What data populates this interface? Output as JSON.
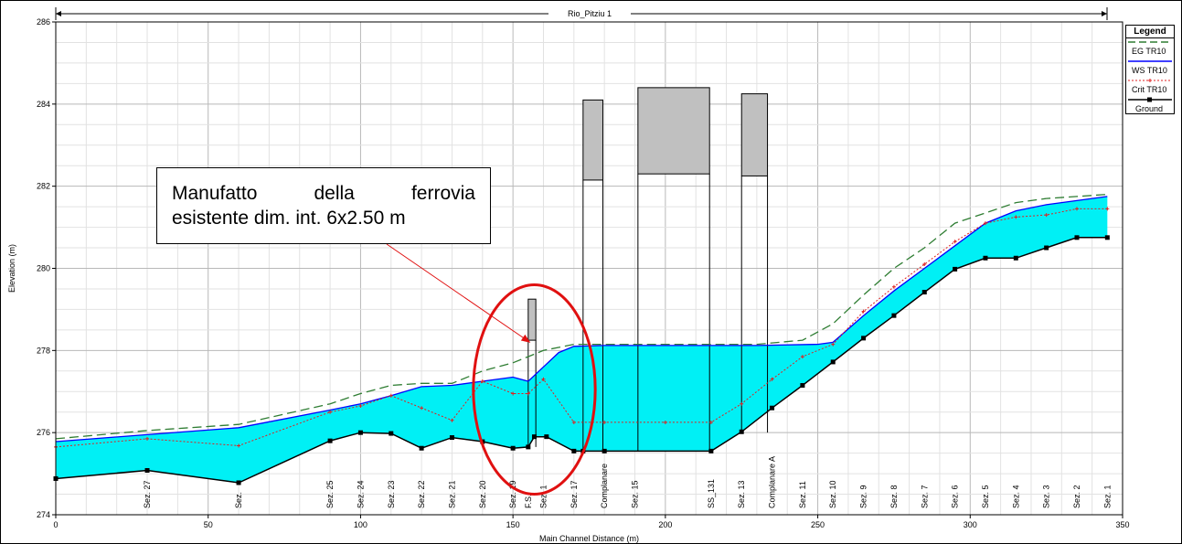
{
  "chart_data": {
    "type": "line",
    "title": "Rio_Pitziu 1",
    "xlabel": "Main Channel Distance (m)",
    "ylabel": "Elevation (m)",
    "xlim": [
      0,
      350
    ],
    "ylim": [
      274,
      286
    ],
    "x_ticks": [
      "0",
      "50",
      "100",
      "150",
      "200",
      "250",
      "300",
      "350"
    ],
    "y_ticks": [
      "274",
      "276",
      "278",
      "280",
      "282",
      "284",
      "286"
    ],
    "grid": true,
    "legend_position": "top-right",
    "legend_title": "Legend",
    "series": [
      {
        "name": "EG TR10",
        "color": "#2e7d32",
        "style": "long-dash",
        "points": [
          [
            0,
            275.85
          ],
          [
            30,
            276.05
          ],
          [
            60,
            276.2
          ],
          [
            90,
            276.7
          ],
          [
            100,
            276.95
          ],
          [
            110,
            277.15
          ],
          [
            120,
            277.2
          ],
          [
            130,
            277.2
          ],
          [
            140,
            277.5
          ],
          [
            150,
            277.7
          ],
          [
            155,
            277.85
          ],
          [
            160,
            278.0
          ],
          [
            170,
            278.15
          ],
          [
            180,
            278.15
          ],
          [
            200,
            278.15
          ],
          [
            230,
            278.15
          ],
          [
            245,
            278.25
          ],
          [
            255,
            278.65
          ],
          [
            265,
            279.35
          ],
          [
            275,
            280.0
          ],
          [
            285,
            280.5
          ],
          [
            295,
            281.1
          ],
          [
            305,
            281.35
          ],
          [
            315,
            281.6
          ],
          [
            325,
            281.7
          ],
          [
            335,
            281.75
          ],
          [
            345,
            281.8
          ]
        ]
      },
      {
        "name": "WS TR10",
        "color": "#0000ff",
        "style": "solid",
        "points": [
          [
            0,
            275.78
          ],
          [
            30,
            275.95
          ],
          [
            60,
            276.12
          ],
          [
            90,
            276.55
          ],
          [
            100,
            276.7
          ],
          [
            110,
            276.9
          ],
          [
            120,
            277.12
          ],
          [
            130,
            277.15
          ],
          [
            140,
            277.25
          ],
          [
            150,
            277.35
          ],
          [
            155,
            277.25
          ],
          [
            160,
            277.6
          ],
          [
            165,
            277.95
          ],
          [
            170,
            278.1
          ],
          [
            180,
            278.12
          ],
          [
            200,
            278.12
          ],
          [
            230,
            278.12
          ],
          [
            250,
            278.15
          ],
          [
            255,
            278.2
          ],
          [
            265,
            278.85
          ],
          [
            275,
            279.45
          ],
          [
            285,
            280.0
          ],
          [
            295,
            280.55
          ],
          [
            305,
            281.1
          ],
          [
            315,
            281.4
          ],
          [
            325,
            281.55
          ],
          [
            335,
            281.65
          ],
          [
            345,
            281.75
          ]
        ]
      },
      {
        "name": "Crit TR10",
        "color": "#e02020",
        "style": "dotted-marker",
        "points": [
          [
            0,
            275.65
          ],
          [
            30,
            275.85
          ],
          [
            60,
            275.68
          ],
          [
            90,
            276.5
          ],
          [
            100,
            276.65
          ],
          [
            110,
            276.9
          ],
          [
            120,
            276.6
          ],
          [
            130,
            276.3
          ],
          [
            140,
            277.25
          ],
          [
            150,
            276.95
          ],
          [
            155,
            276.95
          ],
          [
            160,
            277.3
          ],
          [
            170,
            276.25
          ],
          [
            180,
            276.25
          ],
          [
            200,
            276.25
          ],
          [
            215,
            276.25
          ],
          [
            225,
            276.7
          ],
          [
            235,
            277.3
          ],
          [
            245,
            277.85
          ],
          [
            255,
            278.15
          ],
          [
            265,
            278.95
          ],
          [
            275,
            279.55
          ],
          [
            285,
            280.1
          ],
          [
            295,
            280.65
          ],
          [
            305,
            281.1
          ],
          [
            315,
            281.25
          ],
          [
            325,
            281.3
          ],
          [
            335,
            281.45
          ],
          [
            345,
            281.45
          ]
        ]
      },
      {
        "name": "Ground",
        "color": "#000000",
        "style": "solid-marker",
        "points": [
          [
            0,
            274.88
          ],
          [
            30,
            275.08
          ],
          [
            60,
            274.78
          ],
          [
            90,
            275.8
          ],
          [
            100,
            276.0
          ],
          [
            110,
            275.98
          ],
          [
            120,
            275.62
          ],
          [
            130,
            275.88
          ],
          [
            140,
            275.78
          ],
          [
            150,
            275.62
          ],
          [
            155,
            275.65
          ],
          [
            157,
            275.9
          ],
          [
            161,
            275.9
          ],
          [
            170,
            275.55
          ],
          [
            173,
            275.55
          ],
          [
            180,
            275.55
          ],
          [
            215,
            275.55
          ],
          [
            225,
            276.02
          ],
          [
            235,
            276.6
          ],
          [
            245,
            277.15
          ],
          [
            255,
            277.72
          ],
          [
            265,
            278.3
          ],
          [
            275,
            278.85
          ],
          [
            285,
            279.42
          ],
          [
            295,
            279.98
          ],
          [
            305,
            280.25
          ],
          [
            315,
            280.25
          ],
          [
            325,
            280.5
          ],
          [
            335,
            280.75
          ],
          [
            345,
            280.75
          ]
        ]
      }
    ],
    "cyan_bottom": [
      [
        0,
        274.88
      ],
      [
        30,
        275.08
      ],
      [
        60,
        274.78
      ],
      [
        90,
        275.8
      ],
      [
        100,
        276.0
      ],
      [
        110,
        275.98
      ],
      [
        120,
        275.62
      ],
      [
        130,
        275.88
      ],
      [
        140,
        275.78
      ],
      [
        150,
        275.62
      ],
      [
        155,
        275.65
      ],
      [
        157,
        275.9
      ],
      [
        161,
        275.9
      ],
      [
        170,
        275.55
      ],
      [
        173,
        275.55
      ],
      [
        180,
        275.55
      ],
      [
        215,
        275.55
      ],
      [
        225,
        276.02
      ],
      [
        235,
        276.6
      ],
      [
        245,
        277.15
      ],
      [
        255,
        277.72
      ],
      [
        265,
        278.3
      ],
      [
        275,
        278.85
      ],
      [
        285,
        279.42
      ],
      [
        295,
        279.98
      ],
      [
        305,
        280.25
      ],
      [
        315,
        280.25
      ],
      [
        325,
        280.5
      ],
      [
        335,
        280.75
      ],
      [
        345,
        280.75
      ]
    ],
    "structures": [
      {
        "x0": 155,
        "x1": 157.5,
        "deck_bottom": 278.25,
        "deck_top": 279.25,
        "pier_bottom": 275.65
      },
      {
        "x0": 173,
        "x1": 179.5,
        "deck_bottom": 282.15,
        "deck_top": 284.1,
        "pier_bottom": 275.55
      },
      {
        "x0": 191,
        "x1": 214.5,
        "deck_bottom": 282.3,
        "deck_top": 284.4,
        "pier_bottom": 275.55
      },
      {
        "x0": 225,
        "x1": 233.5,
        "deck_bottom": 282.25,
        "deck_top": 284.25,
        "pier_bottom": 276.0
      }
    ],
    "section_labels": [
      {
        "x": 30,
        "text": "Sez. 27"
      },
      {
        "x": 60,
        "text": "Sez."
      },
      {
        "x": 90,
        "text": "Sez. 25"
      },
      {
        "x": 100,
        "text": "Sez. 24"
      },
      {
        "x": 110,
        "text": "Sez. 23"
      },
      {
        "x": 120,
        "text": "Sez. 22"
      },
      {
        "x": 130,
        "text": "Sez. 21"
      },
      {
        "x": 140,
        "text": "Sez. 20"
      },
      {
        "x": 150,
        "text": "Sez. 19"
      },
      {
        "x": 155,
        "text": "F.S."
      },
      {
        "x": 160,
        "text": "Sez. 1"
      },
      {
        "x": 170,
        "text": "Sez. 17"
      },
      {
        "x": 180,
        "text": "Complanare"
      },
      {
        "x": 190,
        "text": "Sez. 15"
      },
      {
        "x": 215,
        "text": "SS_131"
      },
      {
        "x": 225,
        "text": "Sez. 13"
      },
      {
        "x": 235,
        "text": "Complanare A"
      },
      {
        "x": 245,
        "text": "Sez. 11"
      },
      {
        "x": 255,
        "text": "Sez. 10"
      },
      {
        "x": 265,
        "text": "Sez. 9"
      },
      {
        "x": 275,
        "text": "Sez. 8"
      },
      {
        "x": 285,
        "text": "Sez. 7"
      },
      {
        "x": 295,
        "text": "Sez. 6"
      },
      {
        "x": 305,
        "text": "Sez. 5"
      },
      {
        "x": 315,
        "text": "Sez. 4"
      },
      {
        "x": 325,
        "text": "Sez. 3"
      },
      {
        "x": 335,
        "text": "Sez. 2"
      },
      {
        "x": 345,
        "text": "Sez. 1"
      }
    ],
    "annotation": {
      "line1": "Manufatto della ferrovia",
      "line2": "esistente dim. int. 6x2.50 m",
      "arrow_to": [
        155.5,
        277.2
      ],
      "ellipse_center": [
        157,
        277.05
      ],
      "ellipse_rx": 20,
      "ellipse_ry": 2.55
    }
  },
  "legend": {
    "title": "Legend",
    "items": [
      "EG TR10",
      "WS TR10",
      "Crit TR10",
      "Ground"
    ]
  },
  "colors": {
    "water_fill": "#00f0f5",
    "structure_fill": "#c0c0c0",
    "grid_major": "#b8b8b8",
    "grid_minor": "#e2e2e2",
    "annotation_red": "#e01010"
  }
}
